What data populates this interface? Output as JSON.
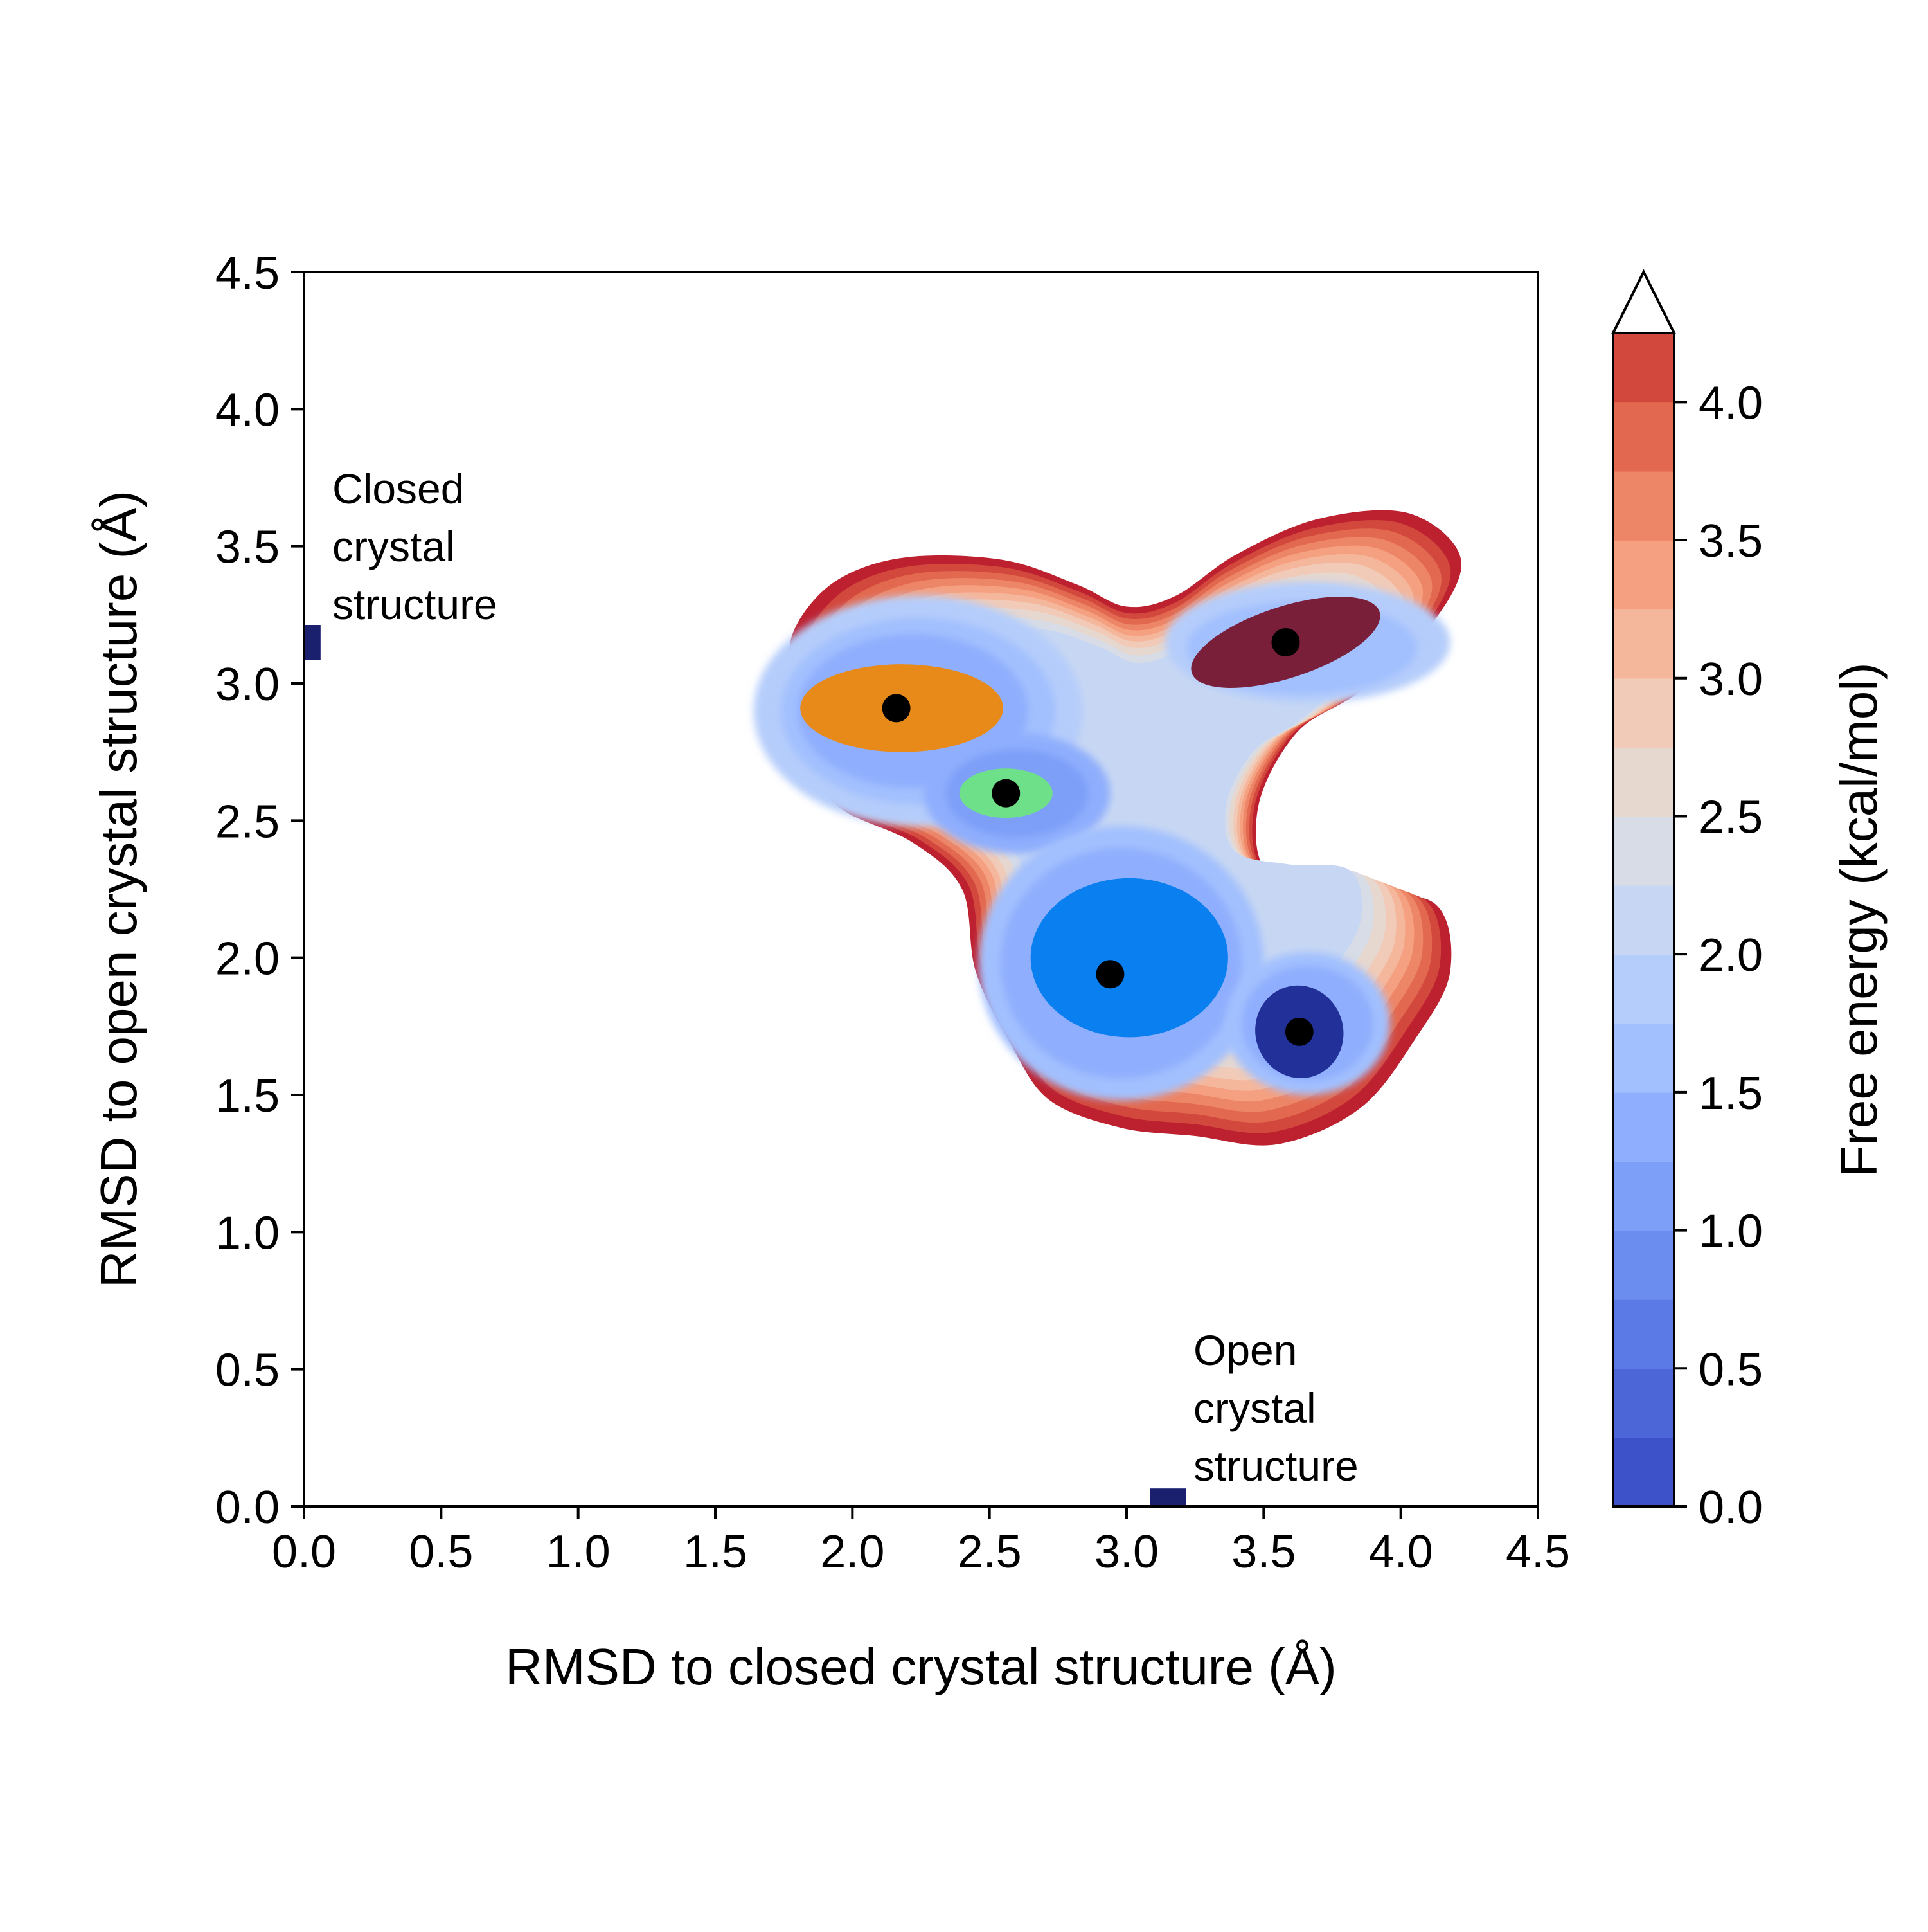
{
  "chart_data": {
    "type": "contour",
    "xlabel": "RMSD to closed crystal structure (Å)",
    "ylabel": "RMSD to open crystal structure (Å)",
    "colorbar_label": "Free energy (kcal/mol)",
    "xlim": [
      0.0,
      4.5
    ],
    "ylim": [
      0.0,
      4.5
    ],
    "clim": [
      0.0,
      4.25
    ],
    "colormap": "coolwarm",
    "colorbar_extend": "max",
    "contour_levels": [
      0.0,
      0.25,
      0.5,
      0.75,
      1.0,
      1.25,
      1.5,
      1.75,
      2.0,
      2.25,
      2.5,
      2.75,
      3.0,
      3.25,
      3.5,
      3.75,
      4.0,
      4.25
    ],
    "x_ticks": [
      "0.0",
      "0.5",
      "1.0",
      "1.5",
      "2.0",
      "2.5",
      "3.0",
      "3.5",
      "4.0",
      "4.5"
    ],
    "y_ticks": [
      "0.0",
      "0.5",
      "1.0",
      "1.5",
      "2.0",
      "2.5",
      "3.0",
      "3.5",
      "4.0",
      "4.5"
    ],
    "colorbar_ticks": [
      "0.0",
      "0.5",
      "1.0",
      "1.5",
      "2.0",
      "2.5",
      "3.0",
      "3.5",
      "4.0"
    ],
    "minima": [
      {
        "x": 2.16,
        "y": 2.91,
        "color": "#e88a1a"
      },
      {
        "x": 2.56,
        "y": 2.6,
        "color": "#6fe08a"
      },
      {
        "x": 2.94,
        "y": 1.94,
        "color": "#0a7ff0"
      },
      {
        "x": 3.58,
        "y": 3.15,
        "color": "#7a1f3a"
      },
      {
        "x": 3.63,
        "y": 1.73,
        "color": "#22309a"
      }
    ],
    "reference_structures": [
      {
        "label_lines": [
          "Closed",
          "crystal",
          "structure"
        ],
        "x": 0.03,
        "y": 3.15,
        "color": "#1a1f6e"
      },
      {
        "label_lines": [
          "Open",
          "crystal",
          "structure"
        ],
        "x": 3.15,
        "y": 0.03,
        "color": "#1a1f6e"
      }
    ]
  },
  "colors": {
    "level_colors": [
      "#3d51c8",
      "#4c66d8",
      "#5c7ae6",
      "#6c8df0",
      "#7d9ff8",
      "#8faefd",
      "#a2c0fe",
      "#b5cdfb",
      "#c7d7f3",
      "#d7dce6",
      "#e6d7cf",
      "#f1cbb8",
      "#f5b79c",
      "#f4a081",
      "#ed8567",
      "#e2694f",
      "#d3483d",
      "#bd2130"
    ]
  }
}
